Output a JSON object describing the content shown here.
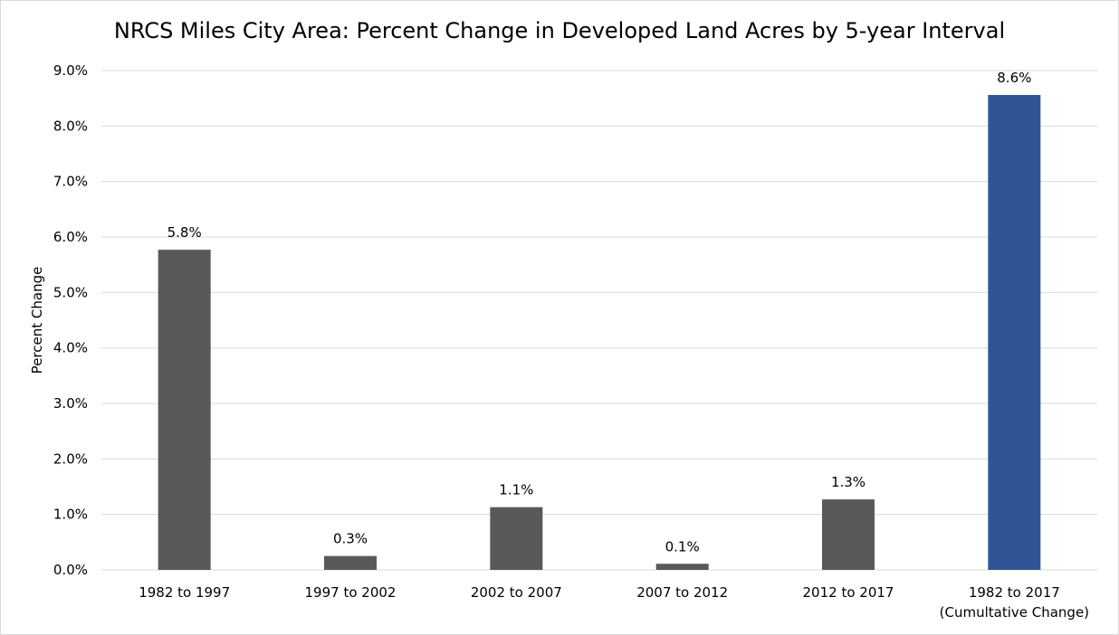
{
  "chart_data": {
    "type": "bar",
    "title": "NRCS Miles City Area: Percent Change in Developed Land Acres by 5-year Interval",
    "ylabel": "Percent Change",
    "xlabel": "",
    "ylim": [
      0,
      9
    ],
    "yticks": [
      "0.0%",
      "1.0%",
      "2.0%",
      "3.0%",
      "4.0%",
      "5.0%",
      "6.0%",
      "7.0%",
      "8.0%",
      "9.0%"
    ],
    "grid": true,
    "categories": [
      [
        "1982 to 1997"
      ],
      [
        "1997 to 2002"
      ],
      [
        "2002 to 2007"
      ],
      [
        "2007 to 2012"
      ],
      [
        "2012 to 2017"
      ],
      [
        "1982 to 2017",
        "(Cumultative Change)"
      ]
    ],
    "values": [
      5.77,
      0.25,
      1.13,
      0.11,
      1.27,
      8.56
    ],
    "data_labels": [
      "5.8%",
      "0.3%",
      "1.1%",
      "0.1%",
      "1.3%",
      "8.6%"
    ],
    "bar_colors": [
      "#595959",
      "#595959",
      "#595959",
      "#595959",
      "#595959",
      "#2f5597"
    ],
    "grid_color": "#d9d9d9"
  }
}
